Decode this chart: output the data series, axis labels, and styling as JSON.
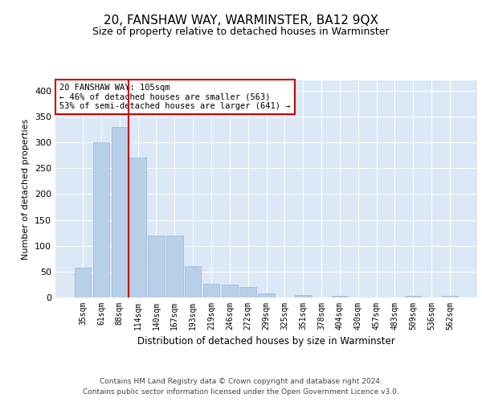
{
  "title": "20, FANSHAW WAY, WARMINSTER, BA12 9QX",
  "subtitle": "Size of property relative to detached houses in Warminster",
  "xlabel": "Distribution of detached houses by size in Warminster",
  "ylabel": "Number of detached properties",
  "footer_line1": "Contains HM Land Registry data © Crown copyright and database right 2024.",
  "footer_line2": "Contains public sector information licensed under the Open Government Licence v3.0.",
  "categories": [
    "35sqm",
    "61sqm",
    "88sqm",
    "114sqm",
    "140sqm",
    "167sqm",
    "193sqm",
    "219sqm",
    "246sqm",
    "272sqm",
    "299sqm",
    "325sqm",
    "351sqm",
    "378sqm",
    "404sqm",
    "430sqm",
    "457sqm",
    "483sqm",
    "509sqm",
    "536sqm",
    "562sqm"
  ],
  "values": [
    57,
    300,
    330,
    270,
    120,
    120,
    60,
    27,
    25,
    20,
    8,
    0,
    5,
    0,
    3,
    0,
    0,
    0,
    3,
    0,
    3
  ],
  "bar_color": "#b8cfe8",
  "bar_edge_color": "#9ab8d8",
  "vline_x_index": 2.5,
  "vline_color": "#cc0000",
  "annotation_text": "20 FANSHAW WAY: 105sqm\n← 46% of detached houses are smaller (563)\n53% of semi-detached houses are larger (641) →",
  "annotation_box_color": "#ffffff",
  "annotation_box_edge_color": "#cc0000",
  "ylim": [
    0,
    420
  ],
  "yticks": [
    0,
    50,
    100,
    150,
    200,
    250,
    300,
    350,
    400
  ],
  "bg_color": "#dce8f5",
  "grid_color": "#ffffff",
  "title_fontsize": 11,
  "subtitle_fontsize": 9
}
